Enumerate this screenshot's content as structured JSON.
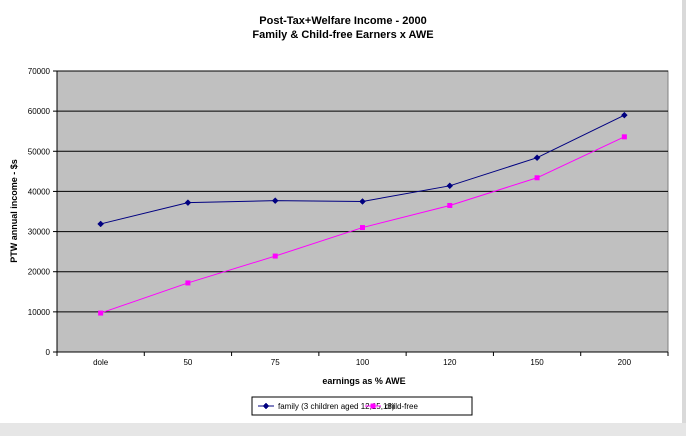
{
  "chart_data": {
    "type": "line",
    "title": "Post-Tax+Welfare Income - 2000",
    "subtitle": "Family & Child-free Earners x AWE",
    "xlabel": "earnings as % AWE",
    "ylabel": "PTW annual income - $s",
    "categories": [
      "dole",
      "50",
      "75",
      "100",
      "120",
      "150",
      "200"
    ],
    "ylim": [
      0,
      70000
    ],
    "yticks": [
      0,
      10000,
      20000,
      30000,
      40000,
      50000,
      60000,
      70000
    ],
    "ytick_labels": [
      "0",
      "10000",
      "20000",
      "30000",
      "40000",
      "50000",
      "60000",
      "70000"
    ],
    "grid": true,
    "legend_position": "bottom",
    "plot_background": "#c0c0c0",
    "series": [
      {
        "name": "family (3 children aged 12,15,18)",
        "color": "#000080",
        "marker": "diamond",
        "values": [
          31900,
          37200,
          37700,
          37500,
          41400,
          48400,
          59000
        ]
      },
      {
        "name": "child-free",
        "color": "#ff00ff",
        "marker": "square",
        "values": [
          9700,
          17200,
          23900,
          31000,
          36500,
          43400,
          53600
        ]
      }
    ]
  }
}
